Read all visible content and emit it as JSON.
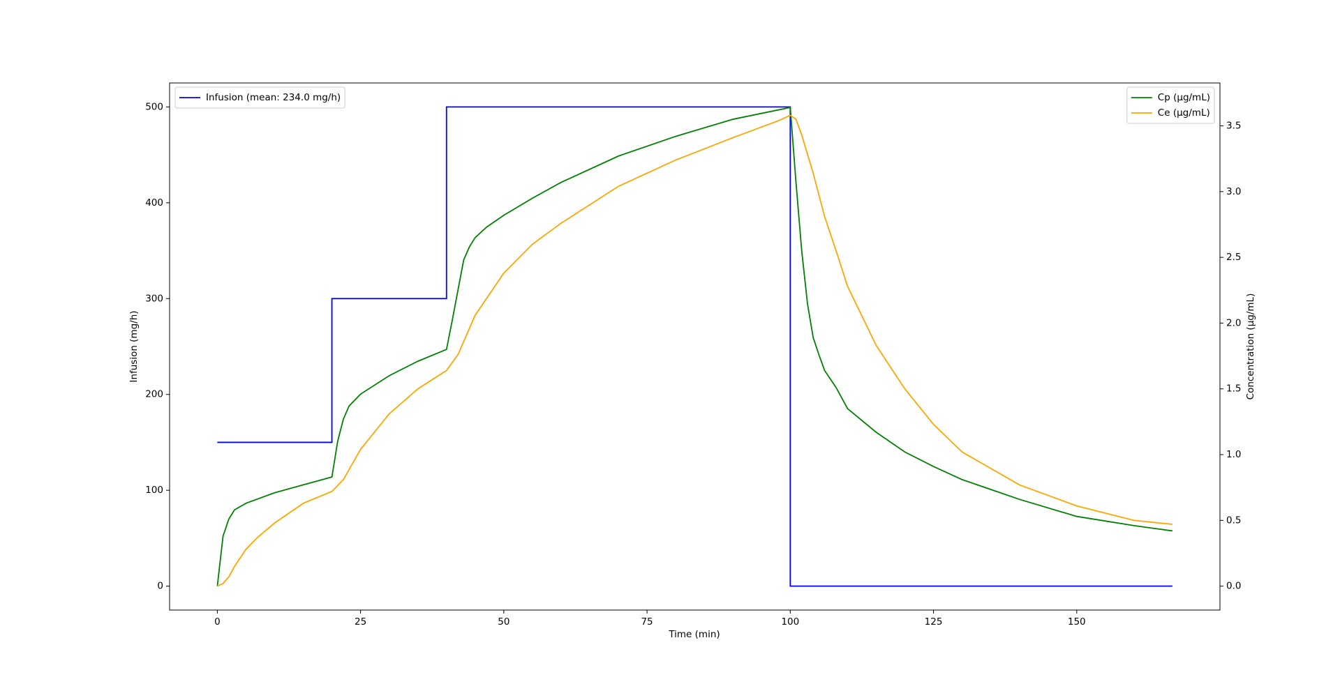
{
  "chart_data": {
    "type": "line",
    "xlabel": "Time (min)",
    "ylabel": "Infusion (mg/h)",
    "y2label": "Concentration (µg/mL)",
    "xlim": [
      -8.33,
      175
    ],
    "ylim": [
      -25,
      525
    ],
    "y2lim": [
      -0.182,
      3.826
    ],
    "xticks": [
      0,
      25,
      50,
      75,
      100,
      125,
      150
    ],
    "yticks": [
      0,
      100,
      200,
      300,
      400,
      500
    ],
    "y2ticks": [
      {
        "value": 0,
        "label": "0.0"
      },
      0.5,
      {
        "value": 1,
        "label": "1.0"
      },
      1.5,
      {
        "value": 2,
        "label": "2.0"
      },
      2.5,
      {
        "value": 3,
        "label": "3.0"
      },
      3.5
    ],
    "grid": false,
    "legend": "upper left",
    "legend2": "upper right",
    "series": [
      {
        "name": "Infusion (mean: 234.0 mg/h)",
        "color": "#0000ff",
        "axis": "y",
        "x": [
          0,
          20,
          20,
          40,
          40,
          100,
          100,
          166.7
        ],
        "values": [
          150,
          150,
          300,
          300,
          500,
          500,
          0,
          0
        ]
      },
      {
        "name": "Cp (µg/mL)",
        "color": "#008000",
        "axis": "y2",
        "x": [
          0,
          1,
          2,
          3,
          5,
          10,
          15,
          20,
          21,
          22,
          23,
          25,
          30,
          35,
          40,
          41,
          42,
          43,
          44,
          45,
          47,
          50,
          55,
          60,
          70,
          80,
          90,
          100,
          101,
          102,
          103,
          104,
          105,
          106,
          108,
          110,
          115,
          120,
          125,
          130,
          140,
          150,
          160,
          166.7
        ],
        "values": [
          0,
          0.38,
          0.51,
          0.58,
          0.63,
          0.71,
          0.77,
          0.83,
          1.1,
          1.27,
          1.37,
          1.46,
          1.6,
          1.71,
          1.8,
          2.02,
          2.25,
          2.48,
          2.58,
          2.65,
          2.73,
          2.82,
          2.95,
          3.07,
          3.27,
          3.42,
          3.55,
          3.64,
          3.07,
          2.55,
          2.15,
          1.89,
          1.76,
          1.64,
          1.51,
          1.35,
          1.17,
          1.02,
          0.91,
          0.81,
          0.66,
          0.53,
          0.46,
          0.42
        ]
      },
      {
        "name": "Ce (µg/mL)",
        "color": "#ffa500",
        "axis": "y2",
        "x": [
          0,
          1,
          2,
          3,
          5,
          7,
          10,
          15,
          20,
          22,
          25,
          30,
          35,
          40,
          42,
          45,
          50,
          55,
          60,
          70,
          80,
          90,
          98,
          100,
          101,
          102,
          104,
          106,
          108,
          110,
          115,
          120,
          125,
          130,
          140,
          150,
          160,
          166.7
        ],
        "values": [
          0,
          0.02,
          0.07,
          0.15,
          0.28,
          0.37,
          0.48,
          0.63,
          0.72,
          0.81,
          1.04,
          1.31,
          1.5,
          1.64,
          1.76,
          2.06,
          2.38,
          2.6,
          2.76,
          3.04,
          3.24,
          3.41,
          3.54,
          3.58,
          3.55,
          3.43,
          3.14,
          2.81,
          2.55,
          2.28,
          1.83,
          1.5,
          1.23,
          1.02,
          0.77,
          0.61,
          0.5,
          0.47
        ]
      }
    ]
  }
}
